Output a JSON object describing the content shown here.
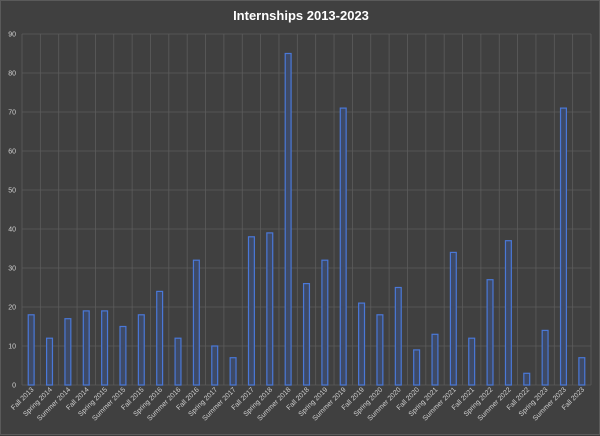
{
  "chart_data": {
    "type": "bar",
    "title": "Internships 2013-2023",
    "xlabel": "",
    "ylabel": "",
    "ylim": [
      0,
      90
    ],
    "ytick_step": 10,
    "grid": true,
    "legend": "none",
    "colors": {
      "background": "#404040",
      "bar_fill": "#3e4a66",
      "bar_outline": "#4a78d8",
      "grid": "#5c5c5c",
      "text": "#d0d0d0",
      "title": "#ffffff"
    },
    "categories": [
      "Fall 2013",
      "Spring 2014",
      "Summer 2014",
      "Fall 2014",
      "Spring 2015",
      "Summer 2015",
      "Fall 2015",
      "Spring 2016",
      "Summer 2016",
      "Fall 2016",
      "Spring 2017",
      "Summer 2017",
      "Fall 2017",
      "Spring 2018",
      "Summer 2018",
      "Fall 2018",
      "Spring 2019",
      "Summer 2019",
      "Fall 2019",
      "Spring 2020",
      "Summer 2020",
      "Fall 2020",
      "Spring 2021",
      "Summer 2021",
      "Fall 2021",
      "Spring 2022",
      "Summer 2022",
      "Fall 2022",
      "Spring 2023",
      "Summer 2023",
      "Fall 2023"
    ],
    "values": [
      18,
      12,
      17,
      19,
      19,
      15,
      18,
      24,
      12,
      32,
      10,
      7,
      38,
      39,
      85,
      26,
      32,
      71,
      21,
      18,
      25,
      9,
      13,
      34,
      12,
      27,
      37,
      3,
      14,
      71,
      7
    ]
  }
}
